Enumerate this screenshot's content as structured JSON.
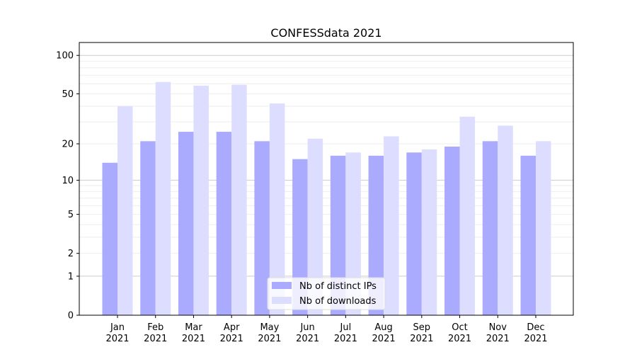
{
  "chart_data": {
    "type": "bar",
    "title": "CONFESSdata 2021",
    "xlabel": "",
    "ylabel": "",
    "yscale": "log10(1+y)",
    "ylim": [
      0,
      126
    ],
    "grid": true,
    "legend_placement": "lower center",
    "categories": [
      "Jan\n2021",
      "Feb\n2021",
      "Mar\n2021",
      "Apr\n2021",
      "May\n2021",
      "Jun\n2021",
      "Jul\n2021",
      "Aug\n2021",
      "Sep\n2021",
      "Oct\n2021",
      "Nov\n2021",
      "Dec\n2021"
    ],
    "yticks": [
      0,
      1,
      2,
      5,
      10,
      20,
      50,
      100
    ],
    "ytick_labels": [
      "0",
      "1",
      "2",
      "5",
      "10",
      "20",
      "50",
      "100"
    ],
    "series": [
      {
        "name": "Nb of distinct IPs",
        "color": "#aaaaff",
        "values": [
          14,
          21,
          25,
          25,
          21,
          15,
          16,
          16,
          17,
          19,
          21,
          16
        ]
      },
      {
        "name": "Nb of downloads",
        "color": "#ddddff",
        "values": [
          40,
          62,
          58,
          59,
          42,
          22,
          17,
          23,
          18,
          33,
          28,
          21
        ]
      }
    ]
  }
}
